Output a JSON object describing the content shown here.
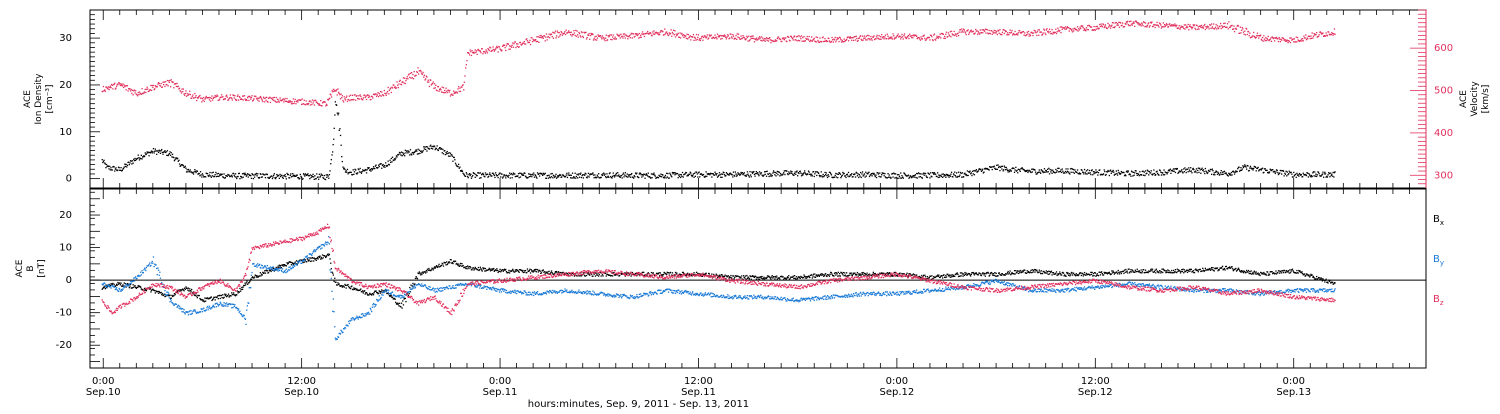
{
  "colors": {
    "black": "#000000",
    "blue": "#1a7ad6",
    "red": "#e0305d"
  },
  "chart_data": [
    {
      "type": "scatter",
      "panel": "plasma",
      "ylabel_left": [
        "ACE",
        "Ion Density",
        "[cm⁻³]"
      ],
      "ylabel_right": [
        "ACE",
        "Velocity",
        "[km/s]"
      ],
      "ylim_left": [
        -2,
        36
      ],
      "ylim_right": [
        270,
        690
      ],
      "yticks_left": [
        "0",
        "10",
        "20",
        "30"
      ],
      "yticks_right": [
        "300",
        "400",
        "500",
        "600"
      ],
      "series": [
        {
          "axis": "left",
          "color": "#000000",
          "points": [
            [
              -0.1,
              4.0
            ],
            [
              0.2,
              2.5
            ],
            [
              1,
              2.0
            ],
            [
              2,
              4.5
            ],
            [
              3,
              6.0
            ],
            [
              4,
              5.5
            ],
            [
              5,
              2.0
            ],
            [
              6,
              1.0
            ],
            [
              8,
              0.7
            ],
            [
              10,
              0.7
            ],
            [
              12,
              0.6
            ],
            [
              13.6,
              0.5
            ],
            [
              13.8,
              5.0
            ],
            [
              13.9,
              9.0
            ],
            [
              14.0,
              17.0
            ],
            [
              14.2,
              13.0
            ],
            [
              14.5,
              2.0
            ],
            [
              15,
              1.5
            ],
            [
              16,
              2.0
            ],
            [
              17,
              3.0
            ],
            [
              18,
              5.5
            ],
            [
              19,
              6.0
            ],
            [
              20,
              7.0
            ],
            [
              21,
              5.0
            ],
            [
              21.8,
              1.0
            ],
            [
              22,
              0.8
            ],
            [
              24,
              0.8
            ],
            [
              26,
              0.8
            ],
            [
              28,
              0.8
            ],
            [
              30,
              0.9
            ],
            [
              32,
              0.8
            ],
            [
              34,
              0.8
            ],
            [
              36,
              1.0
            ],
            [
              38,
              1.0
            ],
            [
              40,
              1.2
            ],
            [
              42,
              1.3
            ],
            [
              44,
              0.9
            ],
            [
              46,
              1.0
            ],
            [
              48,
              0.8
            ],
            [
              50,
              0.8
            ],
            [
              52,
              1.0
            ],
            [
              53,
              1.8
            ],
            [
              54,
              2.5
            ],
            [
              55,
              2.0
            ],
            [
              56,
              1.7
            ],
            [
              58,
              1.8
            ],
            [
              60,
              1.5
            ],
            [
              62,
              1.2
            ],
            [
              64,
              1.5
            ],
            [
              66,
              2.0
            ],
            [
              68,
              1.2
            ],
            [
              69,
              2.5
            ],
            [
              70,
              2.0
            ],
            [
              71,
              1.5
            ],
            [
              72,
              1.0
            ],
            [
              74.5,
              1.0
            ]
          ]
        },
        {
          "axis": "right",
          "color": "#e0305d",
          "points": [
            [
              -0.1,
              505
            ],
            [
              1,
              515
            ],
            [
              2,
              495
            ],
            [
              3,
              510
            ],
            [
              4,
              520
            ],
            [
              5,
              495
            ],
            [
              6,
              480
            ],
            [
              7,
              485
            ],
            [
              8,
              485
            ],
            [
              10,
              480
            ],
            [
              12,
              475
            ],
            [
              13.5,
              470
            ],
            [
              14,
              505
            ],
            [
              14.5,
              480
            ],
            [
              15,
              485
            ],
            [
              16,
              485
            ],
            [
              17,
              495
            ],
            [
              18,
              520
            ],
            [
              19,
              545
            ],
            [
              20,
              510
            ],
            [
              21,
              495
            ],
            [
              21.8,
              510
            ],
            [
              22,
              590
            ],
            [
              24,
              600
            ],
            [
              26,
              620
            ],
            [
              28,
              640
            ],
            [
              30,
              625
            ],
            [
              32,
              630
            ],
            [
              34,
              640
            ],
            [
              36,
              625
            ],
            [
              38,
              630
            ],
            [
              40,
              620
            ],
            [
              42,
              625
            ],
            [
              44,
              620
            ],
            [
              46,
              625
            ],
            [
              48,
              630
            ],
            [
              50,
              625
            ],
            [
              52,
              640
            ],
            [
              54,
              640
            ],
            [
              56,
              635
            ],
            [
              58,
              645
            ],
            [
              60,
              650
            ],
            [
              62,
              660
            ],
            [
              64,
              655
            ],
            [
              66,
              650
            ],
            [
              68,
              655
            ],
            [
              70,
              625
            ],
            [
              72,
              620
            ],
            [
              73,
              630
            ],
            [
              74.5,
              640
            ]
          ]
        }
      ]
    },
    {
      "type": "scatter",
      "panel": "magnetic",
      "ylabel": [
        "ACE",
        "B",
        "[nT]"
      ],
      "ylim": [
        -27,
        28
      ],
      "yticks": [
        "-20",
        "-10",
        "0",
        "10",
        "20"
      ],
      "zero_line": true,
      "legend": "right",
      "series": [
        {
          "name": "Bx",
          "name_parts": [
            "B",
            "x"
          ],
          "color": "#000000",
          "points": [
            [
              -0.1,
              -2
            ],
            [
              1,
              -1
            ],
            [
              2,
              -2
            ],
            [
              3,
              -3
            ],
            [
              4,
              -5
            ],
            [
              5,
              -2
            ],
            [
              6,
              -6
            ],
            [
              7,
              -5
            ],
            [
              8,
              -4
            ],
            [
              9,
              1
            ],
            [
              10,
              3
            ],
            [
              11,
              5
            ],
            [
              12,
              6
            ],
            [
              13,
              7
            ],
            [
              13.6,
              8
            ],
            [
              14,
              -1
            ],
            [
              15,
              -2
            ],
            [
              16,
              -4
            ],
            [
              17,
              -3
            ],
            [
              18,
              -8
            ],
            [
              19,
              2
            ],
            [
              20,
              4
            ],
            [
              21,
              6
            ],
            [
              22,
              4
            ],
            [
              24,
              3
            ],
            [
              26,
              3
            ],
            [
              28,
              2
            ],
            [
              30,
              2
            ],
            [
              32,
              2
            ],
            [
              34,
              2
            ],
            [
              36,
              2
            ],
            [
              38,
              1
            ],
            [
              40,
              1
            ],
            [
              42,
              1
            ],
            [
              44,
              2
            ],
            [
              46,
              2
            ],
            [
              48,
              2
            ],
            [
              50,
              1
            ],
            [
              52,
              2
            ],
            [
              54,
              2
            ],
            [
              56,
              3
            ],
            [
              58,
              2
            ],
            [
              60,
              2
            ],
            [
              62,
              3
            ],
            [
              64,
              3
            ],
            [
              66,
              3
            ],
            [
              68,
              4
            ],
            [
              70,
              2
            ],
            [
              72,
              3
            ],
            [
              74.5,
              -1
            ]
          ]
        },
        {
          "name": "By",
          "name_parts": [
            "B",
            "y"
          ],
          "color": "#1a7ad6",
          "points": [
            [
              -0.1,
              -1
            ],
            [
              1,
              -3
            ],
            [
              2,
              1
            ],
            [
              3,
              6
            ],
            [
              4,
              -6
            ],
            [
              5,
              -10
            ],
            [
              6,
              -9
            ],
            [
              7,
              -7
            ],
            [
              8,
              -8
            ],
            [
              8.6,
              -12
            ],
            [
              9,
              5
            ],
            [
              10,
              4
            ],
            [
              11,
              3
            ],
            [
              12,
              6
            ],
            [
              13,
              10
            ],
            [
              13.6,
              12
            ],
            [
              14,
              -18
            ],
            [
              15,
              -12
            ],
            [
              16,
              -10
            ],
            [
              17,
              -3
            ],
            [
              18,
              -5
            ],
            [
              19,
              -1
            ],
            [
              20,
              -3
            ],
            [
              21,
              -2
            ],
            [
              22,
              -1
            ],
            [
              24,
              -3
            ],
            [
              26,
              -4
            ],
            [
              28,
              -3
            ],
            [
              30,
              -4
            ],
            [
              32,
              -5
            ],
            [
              34,
              -3
            ],
            [
              36,
              -4
            ],
            [
              38,
              -5
            ],
            [
              40,
              -5
            ],
            [
              42,
              -6
            ],
            [
              44,
              -5
            ],
            [
              46,
              -4
            ],
            [
              48,
              -4
            ],
            [
              50,
              -3
            ],
            [
              52,
              -2
            ],
            [
              54,
              0
            ],
            [
              56,
              -3
            ],
            [
              58,
              -3
            ],
            [
              60,
              -2
            ],
            [
              62,
              -1
            ],
            [
              64,
              -2
            ],
            [
              66,
              -3
            ],
            [
              68,
              -3
            ],
            [
              70,
              -4
            ],
            [
              72,
              -3
            ],
            [
              74.5,
              -3
            ]
          ]
        },
        {
          "name": "Bz",
          "name_parts": [
            "B",
            "z"
          ],
          "color": "#e0305d",
          "points": [
            [
              -0.1,
              -6
            ],
            [
              0.5,
              -10
            ],
            [
              1,
              -8
            ],
            [
              2,
              -5
            ],
            [
              3,
              -1
            ],
            [
              4,
              -2
            ],
            [
              5,
              -5
            ],
            [
              6,
              -2
            ],
            [
              7,
              0
            ],
            [
              8,
              -3
            ],
            [
              8.6,
              2
            ],
            [
              9,
              10
            ],
            [
              10,
              11
            ],
            [
              11,
              12
            ],
            [
              12,
              13
            ],
            [
              13,
              15
            ],
            [
              13.6,
              17
            ],
            [
              14,
              4
            ],
            [
              15,
              0
            ],
            [
              16,
              -2
            ],
            [
              17,
              -1
            ],
            [
              18,
              -3
            ],
            [
              19,
              -7
            ],
            [
              20,
              -5
            ],
            [
              21,
              -10
            ],
            [
              22,
              -1
            ],
            [
              24,
              0
            ],
            [
              26,
              1
            ],
            [
              28,
              2
            ],
            [
              30,
              3
            ],
            [
              32,
              2
            ],
            [
              34,
              1
            ],
            [
              36,
              2
            ],
            [
              38,
              0
            ],
            [
              40,
              -1
            ],
            [
              42,
              -2
            ],
            [
              44,
              0
            ],
            [
              46,
              1
            ],
            [
              48,
              2
            ],
            [
              50,
              0
            ],
            [
              52,
              -2
            ],
            [
              54,
              -3
            ],
            [
              56,
              -2
            ],
            [
              58,
              -1
            ],
            [
              60,
              0
            ],
            [
              62,
              -2
            ],
            [
              64,
              -3
            ],
            [
              66,
              -2
            ],
            [
              68,
              -4
            ],
            [
              70,
              -3
            ],
            [
              72,
              -5
            ],
            [
              74.5,
              -6
            ]
          ]
        }
      ]
    }
  ],
  "x_axis": {
    "unit": "hours from Sep. 10 0:00",
    "xlim": [
      -0.8,
      80.0
    ],
    "ticks": [
      {
        "x": 0,
        "time": "0:00",
        "date": "Sep.10"
      },
      {
        "x": 12,
        "time": "12:00",
        "date": "Sep.10"
      },
      {
        "x": 24,
        "time": "0:00",
        "date": "Sep.11"
      },
      {
        "x": 36,
        "time": "12:00",
        "date": "Sep.11"
      },
      {
        "x": 48,
        "time": "0:00",
        "date": "Sep.12"
      },
      {
        "x": 60,
        "time": "12:00",
        "date": "Sep.12"
      },
      {
        "x": 72,
        "time": "0:00",
        "date": "Sep.13"
      }
    ],
    "label": "hours:minutes, Sep.  9, 2011 - Sep. 13, 2011"
  }
}
